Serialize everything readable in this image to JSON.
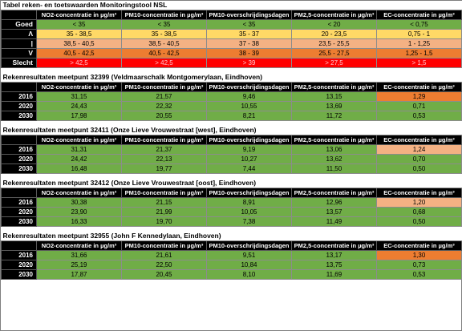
{
  "legend": {
    "title": "Tabel reken- en toetswaarden Monitoringstool NSL",
    "columns": [
      "NO2-concentratie in µg/m³",
      "PM10-concentratie in µg/m³",
      "PM10-overschrijdingsdagen",
      "PM2,5-concentratie in µg/m³",
      "EC-concentratie in µg/m³"
    ],
    "rows": [
      {
        "label": "Goed",
        "values": [
          "< 35",
          "< 35",
          "< 35",
          "< 20",
          "< 0,75"
        ]
      },
      {
        "label": "Λ",
        "values": [
          "35 - 38,5",
          "35 - 38,5",
          "35 - 37",
          "20 - 23,5",
          "0,75 - 1"
        ]
      },
      {
        "label": "|",
        "values": [
          "38,5 - 40,5",
          "38,5 - 40,5",
          "37 - 38",
          "23,5 - 25,5",
          "1 - 1,25"
        ]
      },
      {
        "label": "V",
        "values": [
          "40,5 - 42,5",
          "40,5 - 42,5",
          "38 - 39",
          "25,5 - 27,5",
          "1,25 - 1,5"
        ]
      },
      {
        "label": "Slecht",
        "values": [
          "> 42,5",
          "> 42,5",
          "> 39",
          "> 27,5",
          "> 1,5"
        ]
      }
    ]
  },
  "section_columns": [
    "NO2-concentratie in µg/m³",
    "PM10-concentratie in µg/m³",
    "PM10-overschrijdingsdagen",
    "PM2,5-concentratie in µg/m³",
    "EC-concentratie in µg/m³"
  ],
  "sections": [
    {
      "title": "Rekenresultaten meetpunt 32399 (Veldmaarschalk Montgomerylaan, Eindhoven)",
      "rows": [
        {
          "year": "2016",
          "values": [
            "31,15",
            "21,57",
            "9,46",
            "13,15",
            "1,29"
          ]
        },
        {
          "year": "2020",
          "values": [
            "24,43",
            "22,32",
            "10,55",
            "13,69",
            "0,71"
          ]
        },
        {
          "year": "2030",
          "values": [
            "17,98",
            "20,55",
            "8,21",
            "11,72",
            "0,53"
          ]
        }
      ]
    },
    {
      "title": "Rekenresultaten meetpunt 32411 (Onze Lieve Vrouwestraat [west], Eindhoven)",
      "rows": [
        {
          "year": "2016",
          "values": [
            "31,31",
            "21,37",
            "9,19",
            "13,06",
            "1,24"
          ]
        },
        {
          "year": "2020",
          "values": [
            "24,42",
            "22,13",
            "10,27",
            "13,62",
            "0,70"
          ]
        },
        {
          "year": "2030",
          "values": [
            "16,48",
            "19,77",
            "7,44",
            "11,50",
            "0,50"
          ]
        }
      ]
    },
    {
      "title": "Rekenresultaten meetpunt 32412 (Onze Lieve Vrouwestraat [oost], Eindhoven)",
      "rows": [
        {
          "year": "2016",
          "values": [
            "30,38",
            "21,15",
            "8,91",
            "12,96",
            "1,20"
          ]
        },
        {
          "year": "2020",
          "values": [
            "23,90",
            "21,99",
            "10,05",
            "13,57",
            "0,68"
          ]
        },
        {
          "year": "2030",
          "values": [
            "16,33",
            "19,70",
            "7,38",
            "11,49",
            "0,50"
          ]
        }
      ]
    },
    {
      "title": "Rekenresultaten meetpunt 32955 (John F Kennedylaan, Eindhoven)",
      "rows": [
        {
          "year": "2016",
          "values": [
            "31,66",
            "21,61",
            "9,51",
            "13,17",
            "1,30"
          ]
        },
        {
          "year": "2020",
          "values": [
            "25,19",
            "22,50",
            "10,84",
            "13,75",
            "0,73"
          ]
        },
        {
          "year": "2030",
          "values": [
            "17,87",
            "20,45",
            "8,10",
            "11,69",
            "0,53"
          ]
        }
      ]
    }
  ],
  "colors": {
    "good": "#70ad47",
    "light": "#ffd966",
    "mid": "#f4b183",
    "high": "#ed7d31",
    "bad": "#ff0000",
    "header": "#000000"
  }
}
